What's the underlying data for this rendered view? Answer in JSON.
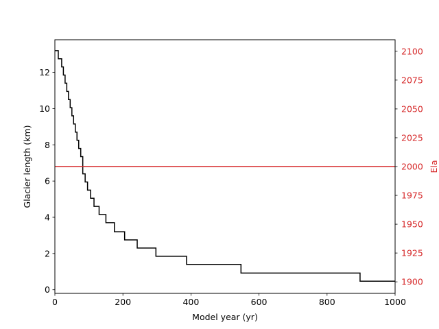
{
  "chart_data": {
    "type": "line",
    "title": "",
    "xlabel": "Model year (yr)",
    "ylabel": "Glacier length (km)",
    "y2label": "Ela",
    "xlim": [
      0,
      1000
    ],
    "ylim": [
      -0.2,
      13.8
    ],
    "y2lim": [
      1890,
      2110
    ],
    "xticks": [
      0,
      200,
      400,
      600,
      800,
      1000
    ],
    "yticks": [
      0,
      2,
      4,
      6,
      8,
      10,
      12
    ],
    "y2ticks": [
      1900,
      1925,
      1950,
      1975,
      2000,
      2025,
      2050,
      2075,
      2100
    ],
    "grid": false,
    "colors": {
      "length": "#000000",
      "ela": "#d62728"
    },
    "series": [
      {
        "step": "post",
        "x": [
          0,
          10,
          20,
          25,
          30,
          35,
          40,
          45,
          50,
          55,
          60,
          65,
          70,
          76,
          82,
          89,
          96,
          105,
          115,
          130,
          150,
          175,
          205,
          242,
          297,
          387,
          547,
          897,
          1000
        ],
        "values": [
          13.2,
          12.75,
          12.3,
          11.85,
          11.4,
          10.95,
          10.5,
          10.05,
          9.6,
          9.15,
          8.7,
          8.25,
          7.8,
          7.35,
          6.4,
          5.95,
          5.5,
          5.05,
          4.6,
          4.15,
          3.7,
          3.2,
          2.75,
          2.3,
          1.85,
          1.4,
          0.92,
          0.47,
          0.47
        ]
      },
      {
        "axis": "right",
        "x": [
          0,
          1000
        ],
        "values": [
          2000,
          2000
        ]
      }
    ]
  }
}
